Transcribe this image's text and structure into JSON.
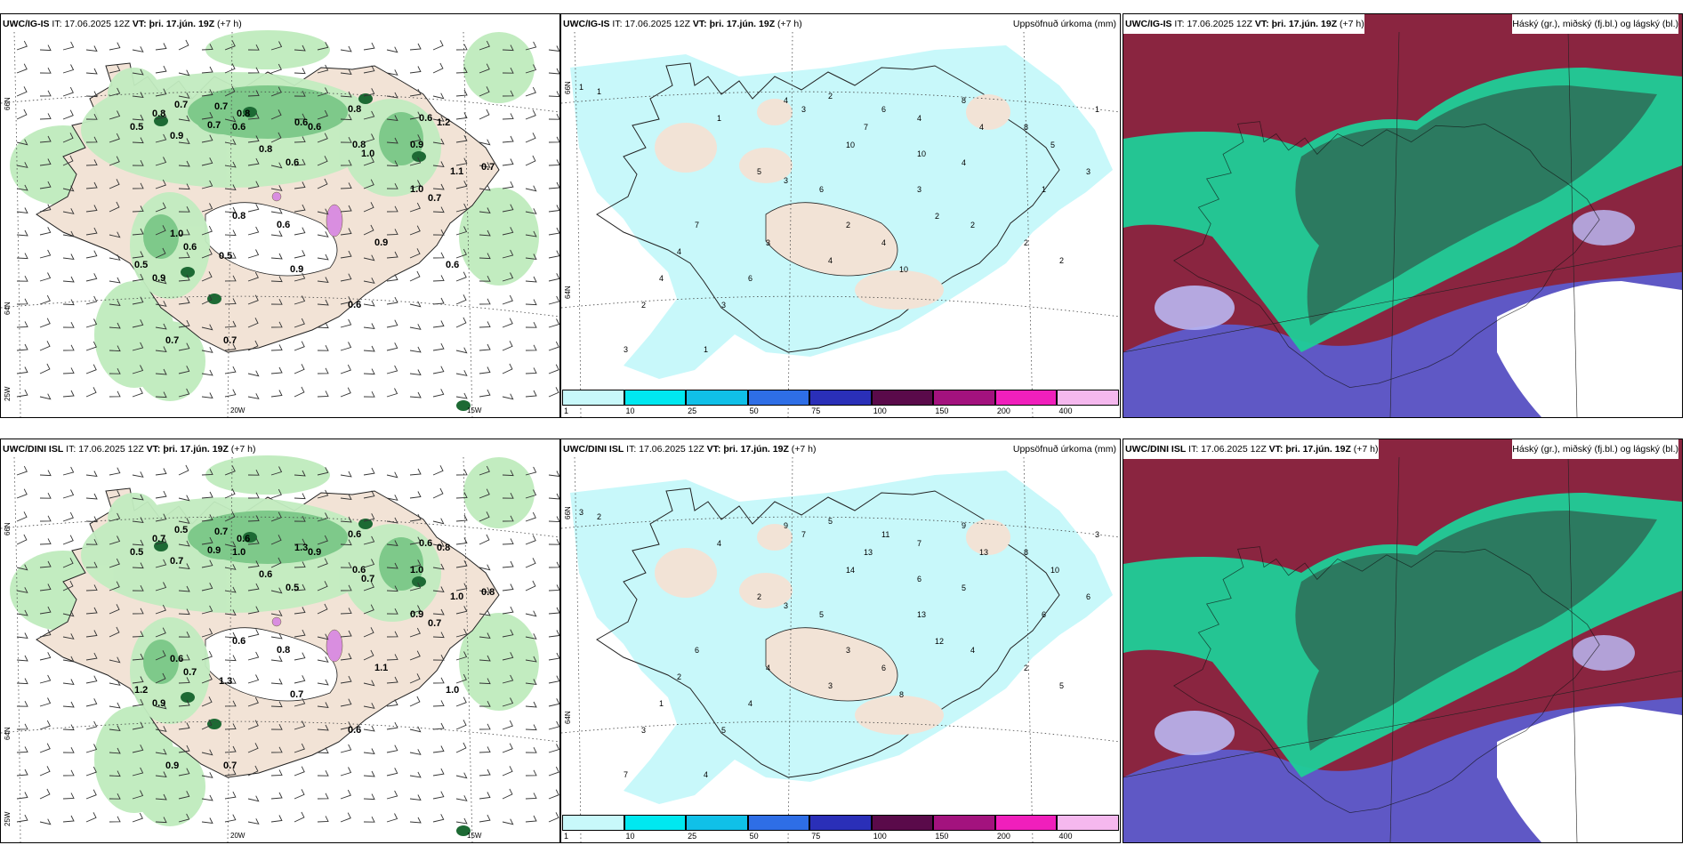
{
  "panels": [
    {
      "type": "wind",
      "model": "UWC/IG-IS",
      "init_label": "IT:",
      "init": "17.06.2025 12Z",
      "valid_label": "VT:",
      "valid": "þri. 17.jún. 19Z",
      "lead": "(+7 h)",
      "right_title": "",
      "axis_labels": [
        "66N",
        "64N",
        "20W",
        "15W",
        "25W"
      ],
      "values": [
        "0.7",
        "0.8",
        "0.7",
        "0.8",
        "0.5",
        "0.9",
        "0.7",
        "0.6",
        "0.8",
        "0.6",
        "0.6",
        "0.8",
        "1.0",
        "0.9",
        "0.6",
        "1.2",
        "0.8",
        "0.6",
        "1.0",
        "0.7",
        "1.1",
        "0.7",
        "1.0",
        "0.6",
        "0.5",
        "0.9",
        "0.8",
        "0.5",
        "0.6",
        "0.9",
        "0.6",
        "0.9",
        "0.7",
        "0.7",
        "0.6"
      ]
    },
    {
      "type": "precip",
      "model": "UWC/IG-IS",
      "init_label": "IT:",
      "init": "17.06.2025 12Z",
      "valid_label": "VT:",
      "valid": "þri. 17.jún. 19Z",
      "lead": "(+7 h)",
      "right_title": "Uppsöfnuð úrkoma (mm)",
      "axis_labels": [
        "66N",
        "64N"
      ],
      "values": [
        "1",
        "1",
        "1",
        "4",
        "3",
        "2",
        "6",
        "4",
        "8",
        "4",
        "10",
        "7",
        "10",
        "4",
        "8",
        "5",
        "3",
        "2",
        "2",
        "1",
        "5",
        "3",
        "6",
        "2",
        "4",
        "10",
        "4",
        "3",
        "6",
        "3",
        "7",
        "4",
        "4",
        "2",
        "3",
        "1",
        "2",
        "2",
        "3",
        "1"
      ]
    },
    {
      "type": "cloud",
      "model": "UWC/IG-IS",
      "init_label": "IT:",
      "init": "17.06.2025 12Z",
      "valid_label": "VT:",
      "valid": "þri. 17.jún. 19Z",
      "lead": "(+7 h)",
      "right_title": "Háský (gr.), miðský (fj.bl.) og lágský (bl.)"
    },
    {
      "type": "wind",
      "model": "UWC/DINI ISL",
      "init_label": "IT:",
      "init": "17.06.2025 12Z",
      "valid_label": "VT:",
      "valid": "þri. 17.jún. 19Z",
      "lead": "(+7 h)",
      "right_title": "",
      "axis_labels": [
        "66N",
        "64N",
        "20W",
        "15W",
        "25W"
      ],
      "values": [
        "0.5",
        "0.7",
        "0.7",
        "0.6",
        "0.5",
        "0.7",
        "0.9",
        "1.0",
        "0.6",
        "1.3",
        "0.9",
        "0.6",
        "0.7",
        "1.0",
        "0.6",
        "0.8",
        "0.6",
        "0.5",
        "0.9",
        "0.7",
        "1.0",
        "0.8",
        "0.6",
        "0.7",
        "1.2",
        "0.9",
        "0.6",
        "1.3",
        "0.8",
        "0.7",
        "0.6",
        "1.1",
        "0.9",
        "0.7",
        "1.0"
      ]
    },
    {
      "type": "precip",
      "model": "UWC/DINI ISL",
      "init_label": "IT:",
      "init": "17.06.2025 12Z",
      "valid_label": "VT:",
      "valid": "þri. 17.jún. 19Z",
      "lead": "(+7 h)",
      "right_title": "Uppsöfnuð úrkoma (mm)",
      "axis_labels": [
        "66N",
        "64N"
      ],
      "values": [
        "3",
        "2",
        "4",
        "9",
        "7",
        "5",
        "11",
        "7",
        "9",
        "13",
        "14",
        "13",
        "6",
        "5",
        "8",
        "10",
        "13",
        "12",
        "4",
        "6",
        "2",
        "3",
        "5",
        "3",
        "6",
        "8",
        "3",
        "4",
        "4",
        "5",
        "6",
        "2",
        "1",
        "3",
        "7",
        "4",
        "2",
        "5",
        "6",
        "3"
      ]
    },
    {
      "type": "cloud",
      "model": "UWC/DINI ISL",
      "init_label": "IT:",
      "init": "17.06.2025 12Z",
      "valid_label": "VT:",
      "valid": "þri. 17.jún. 19Z",
      "lead": "(+7 h)",
      "right_title": "Háský (gr.), miðský (fj.bl.) og lágský (bl.)"
    }
  ],
  "legend": {
    "labels": [
      "1",
      "10",
      "25",
      "50",
      "75",
      "100",
      "150",
      "200",
      "400"
    ],
    "colors": [
      "#c8f8fa",
      "#00e8f0",
      "#10c0e8",
      "#2e6ee6",
      "#2a2fb8",
      "#5a0a4a",
      "#a3127e",
      "#f01fbc",
      "#f5b8ee"
    ]
  },
  "colors": {
    "land": "#f2e3d6",
    "green_light": "#c2ecc0",
    "green_mid": "#7ec98a",
    "green_dark": "#1d6a34",
    "green_darkest": "#0a3d1e",
    "precip_light": "#c8f8fa",
    "cloud_high_green": "#2c7a60",
    "cloud_mid_green": "#1fce98",
    "cloud_high_maroon": "#8a2540",
    "cloud_low_blue": "#5a5ed4",
    "cloud_low_lavender": "#b9b7f2"
  }
}
